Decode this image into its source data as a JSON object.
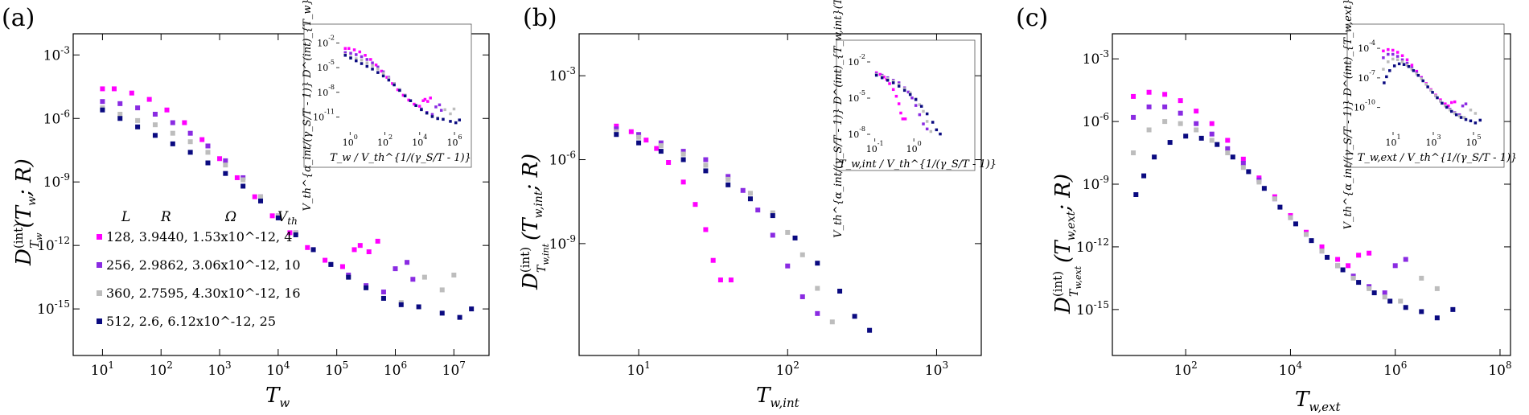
{
  "chart_data": [
    {
      "type": "scatter",
      "panel": "(a)",
      "xscale": "log",
      "yscale": "log",
      "xlim_exp": [
        0.5,
        7.6
      ],
      "ylim_exp": [
        -17.2,
        -2.0
      ],
      "xticks": [
        1,
        2,
        3,
        4,
        5,
        6,
        7
      ],
      "yticks": [
        -15,
        -12,
        -9,
        -6,
        -3
      ],
      "xlabel": "T_w",
      "ylabel": "D^(int)_{T_w}(T_w; R)",
      "legend": {
        "position": "lower-left",
        "headers": [
          "L",
          "R",
          "Ω",
          "V_th"
        ],
        "entries": [
          {
            "text": "128, 3.9440, 1.53x10^-12, 4",
            "color": "#ff00ff"
          },
          {
            "text": "256, 2.9862, 3.06x10^-12, 10",
            "color": "#8a2be2"
          },
          {
            "text": "360, 2.7595, 4.30x10^-12, 16",
            "color": "#bdbdbd"
          },
          {
            "text": "512, 2.6, 6.12x10^-12, 25",
            "color": "#0a0a80"
          }
        ]
      },
      "series": [
        {
          "name": "L=128",
          "color": "#ff00ff",
          "x_exp": [
            1.0,
            1.2,
            1.5,
            1.8,
            2.1,
            2.4,
            2.7,
            3.0,
            3.3,
            3.6,
            3.9,
            4.2,
            4.5,
            4.8,
            5.1,
            5.3,
            5.4,
            5.55,
            5.7
          ],
          "y_exp": [
            -4.6,
            -4.6,
            -4.8,
            -5.1,
            -5.6,
            -6.2,
            -7.0,
            -7.9,
            -8.8,
            -9.7,
            -10.6,
            -11.4,
            -12.1,
            -12.7,
            -13.0,
            -12.2,
            -12.0,
            -12.3,
            -11.8
          ]
        },
        {
          "name": "L=256",
          "color": "#8a2be2",
          "x_exp": [
            1.0,
            1.3,
            1.6,
            1.9,
            2.2,
            2.5,
            2.8,
            3.1,
            3.4,
            3.7,
            4.0,
            4.3,
            4.6,
            4.9,
            5.2,
            5.5,
            5.8,
            6.0,
            6.2,
            6.3
          ],
          "y_exp": [
            -5.2,
            -5.3,
            -5.5,
            -5.8,
            -6.2,
            -6.7,
            -7.3,
            -8.0,
            -8.8,
            -9.7,
            -10.6,
            -11.4,
            -12.2,
            -12.9,
            -13.4,
            -13.9,
            -14.2,
            -13.1,
            -12.8,
            -13.6
          ]
        },
        {
          "name": "L=360",
          "color": "#bdbdbd",
          "x_exp": [
            1.0,
            1.3,
            1.6,
            1.9,
            2.2,
            2.5,
            2.8,
            3.1,
            3.4,
            3.7,
            4.0,
            4.3,
            4.6,
            4.9,
            5.2,
            5.5,
            5.8,
            6.1,
            6.5,
            6.8,
            7.0
          ],
          "y_exp": [
            -5.5,
            -5.8,
            -6.1,
            -6.3,
            -6.7,
            -7.1,
            -7.6,
            -8.2,
            -8.9,
            -9.7,
            -10.6,
            -11.4,
            -12.2,
            -12.9,
            -13.5,
            -14.0,
            -14.5,
            -14.7,
            -13.5,
            -14.1,
            -13.4
          ]
        },
        {
          "name": "L=512",
          "color": "#0a0a80",
          "x_exp": [
            1.0,
            1.3,
            1.6,
            1.9,
            2.2,
            2.5,
            2.8,
            3.1,
            3.4,
            3.7,
            4.0,
            4.3,
            4.6,
            4.9,
            5.2,
            5.5,
            5.8,
            6.1,
            6.4,
            6.8,
            7.1,
            7.3
          ],
          "y_exp": [
            -5.6,
            -6.0,
            -6.4,
            -6.8,
            -7.2,
            -7.6,
            -8.1,
            -8.6,
            -9.2,
            -9.9,
            -10.7,
            -11.5,
            -12.2,
            -12.9,
            -13.5,
            -14.0,
            -14.5,
            -14.8,
            -14.9,
            -15.2,
            -15.4,
            -15.0
          ]
        }
      ],
      "inset": {
        "xlabel": "T_w / V_th^{1/(γ_S/T - 1)}",
        "ylabel": "V_th^{α_int/(γ_S/T - 1)} D^(int)_{T_w}(T_w; R)",
        "xlim_exp": [
          -0.8,
          6.6
        ],
        "ylim_exp": [
          -13.2,
          -0.5
        ],
        "xticks": [
          0,
          2,
          4,
          6
        ],
        "yticks": [
          -11,
          -8,
          -5,
          -2
        ]
      }
    },
    {
      "type": "scatter",
      "panel": "(b)",
      "xscale": "log",
      "yscale": "log",
      "xlim_exp": [
        0.6,
        3.3
      ],
      "ylim_exp": [
        -13.0,
        -1.5
      ],
      "xticks": [
        1,
        2,
        3
      ],
      "yticks": [
        -9,
        -6,
        -3
      ],
      "xlabel": "T_w,int",
      "ylabel": "D^(int)_{T_w,int}(T_w,int; R)",
      "series": [
        {
          "name": "L=128",
          "color": "#ff00ff",
          "x_exp": [
            0.85,
            0.95,
            1.05,
            1.12,
            1.2,
            1.3,
            1.38,
            1.45,
            1.5,
            1.55,
            1.62
          ],
          "y_exp": [
            -4.8,
            -5.0,
            -5.3,
            -5.6,
            -6.1,
            -6.8,
            -7.6,
            -8.5,
            -9.6,
            -10.3,
            -10.3
          ]
        },
        {
          "name": "L=256",
          "color": "#8a2be2",
          "x_exp": [
            0.85,
            1.0,
            1.15,
            1.3,
            1.45,
            1.6,
            1.7,
            1.8,
            1.9,
            2.0,
            2.1,
            2.2
          ],
          "y_exp": [
            -4.9,
            -5.1,
            -5.4,
            -5.7,
            -6.0,
            -6.6,
            -7.1,
            -7.8,
            -8.7,
            -9.8,
            -10.9,
            -11.5
          ]
        },
        {
          "name": "L=360",
          "color": "#bdbdbd",
          "x_exp": [
            0.85,
            1.0,
            1.15,
            1.3,
            1.45,
            1.6,
            1.75,
            1.9,
            2.0,
            2.1,
            2.2,
            2.3
          ],
          "y_exp": [
            -5.0,
            -5.2,
            -5.5,
            -5.8,
            -6.2,
            -6.7,
            -7.2,
            -7.9,
            -8.6,
            -9.4,
            -10.6,
            -11.8
          ]
        },
        {
          "name": "L=512",
          "color": "#0a0a80",
          "x_exp": [
            0.85,
            1.0,
            1.15,
            1.3,
            1.45,
            1.6,
            1.75,
            1.9,
            2.05,
            2.2,
            2.35,
            2.45,
            2.55
          ],
          "y_exp": [
            -5.1,
            -5.4,
            -5.7,
            -6.0,
            -6.4,
            -6.9,
            -7.4,
            -8.0,
            -8.8,
            -9.7,
            -10.7,
            -11.6,
            -12.1
          ]
        }
      ],
      "inset": {
        "xlabel": "T_w,int / V_th^{1/(γ_S/T - 1)}",
        "ylabel": "V_th^{α_int/(γ_S/T - 1)} D^(int)_{T_w,int}(T_w,int; R)",
        "xlim_exp": [
          -1.2,
          1.4
        ],
        "ylim_exp": [
          -8.6,
          -0.6
        ],
        "xticks": [
          -1,
          0
        ],
        "yticks": [
          -8,
          -5,
          -2
        ]
      }
    },
    {
      "type": "scatter",
      "panel": "(c)",
      "xscale": "log",
      "yscale": "log",
      "xlim_exp": [
        0.6,
        8.2
      ],
      "ylim_exp": [
        -17.2,
        -1.8
      ],
      "xticks": [
        2,
        4,
        6,
        8
      ],
      "yticks": [
        -15,
        -12,
        -9,
        -6,
        -3
      ],
      "xlabel": "T_w,ext",
      "ylabel": "D^(int)_{T_w,ext}(T_w,ext; R)",
      "series": [
        {
          "name": "L=128",
          "color": "#ff00ff",
          "x_exp": [
            1.0,
            1.3,
            1.6,
            1.9,
            2.2,
            2.5,
            2.8,
            3.1,
            3.4,
            3.7,
            4.0,
            4.3,
            4.6,
            4.9,
            5.1,
            5.3,
            5.5
          ],
          "y_exp": [
            -4.8,
            -4.6,
            -4.7,
            -5.0,
            -5.5,
            -6.1,
            -6.9,
            -7.8,
            -8.7,
            -9.6,
            -10.5,
            -11.3,
            -12.0,
            -12.6,
            -12.9,
            -12.4,
            -12.3
          ]
        },
        {
          "name": "L=256",
          "color": "#8a2be2",
          "x_exp": [
            1.0,
            1.3,
            1.6,
            1.9,
            2.2,
            2.5,
            2.8,
            3.1,
            3.4,
            3.7,
            4.0,
            4.3,
            4.6,
            4.9,
            5.2,
            5.5,
            5.8,
            6.0,
            6.2
          ],
          "y_exp": [
            -5.8,
            -5.3,
            -5.3,
            -5.6,
            -6.1,
            -6.6,
            -7.3,
            -8.0,
            -8.8,
            -9.7,
            -10.6,
            -11.4,
            -12.2,
            -12.9,
            -13.4,
            -13.9,
            -14.2,
            -12.9,
            -12.6
          ]
        },
        {
          "name": "L=360",
          "color": "#bdbdbd",
          "x_exp": [
            1.0,
            1.3,
            1.6,
            1.9,
            2.2,
            2.5,
            2.8,
            3.1,
            3.4,
            3.7,
            4.0,
            4.3,
            4.6,
            4.9,
            5.2,
            5.5,
            5.8,
            6.1,
            6.5,
            6.8
          ],
          "y_exp": [
            -7.5,
            -6.4,
            -6.0,
            -6.1,
            -6.4,
            -6.9,
            -7.5,
            -8.2,
            -8.9,
            -9.7,
            -10.6,
            -11.4,
            -12.2,
            -12.9,
            -13.5,
            -14.0,
            -14.4,
            -14.6,
            -13.5,
            -14.0
          ]
        },
        {
          "name": "L=512",
          "color": "#0a0a80",
          "x_exp": [
            1.05,
            1.2,
            1.4,
            1.7,
            2.0,
            2.3,
            2.6,
            2.9,
            3.2,
            3.5,
            3.8,
            4.1,
            4.4,
            4.7,
            5.0,
            5.3,
            5.6,
            5.9,
            6.2,
            6.5,
            6.8,
            7.1
          ],
          "y_exp": [
            -9.5,
            -8.6,
            -7.7,
            -7.0,
            -6.7,
            -6.8,
            -7.1,
            -7.7,
            -8.4,
            -9.2,
            -10.1,
            -10.9,
            -11.7,
            -12.5,
            -13.1,
            -13.7,
            -14.2,
            -14.6,
            -14.9,
            -15.1,
            -15.4,
            -15.0
          ]
        }
      ],
      "inset": {
        "xlabel": "T_w,ext / V_th^{1/(γ_S/T - 1)}",
        "ylabel": "V_th^{α_int/(γ_S/T - 1)} D^(int)_{T_w,ext}(T_w,ext; R)",
        "xlim_exp": [
          0.2,
          6.2
        ],
        "ylim_exp": [
          -12.8,
          -2.2
        ],
        "xticks": [
          1,
          3,
          5
        ],
        "yticks": [
          -10,
          -7,
          -4
        ]
      }
    }
  ]
}
